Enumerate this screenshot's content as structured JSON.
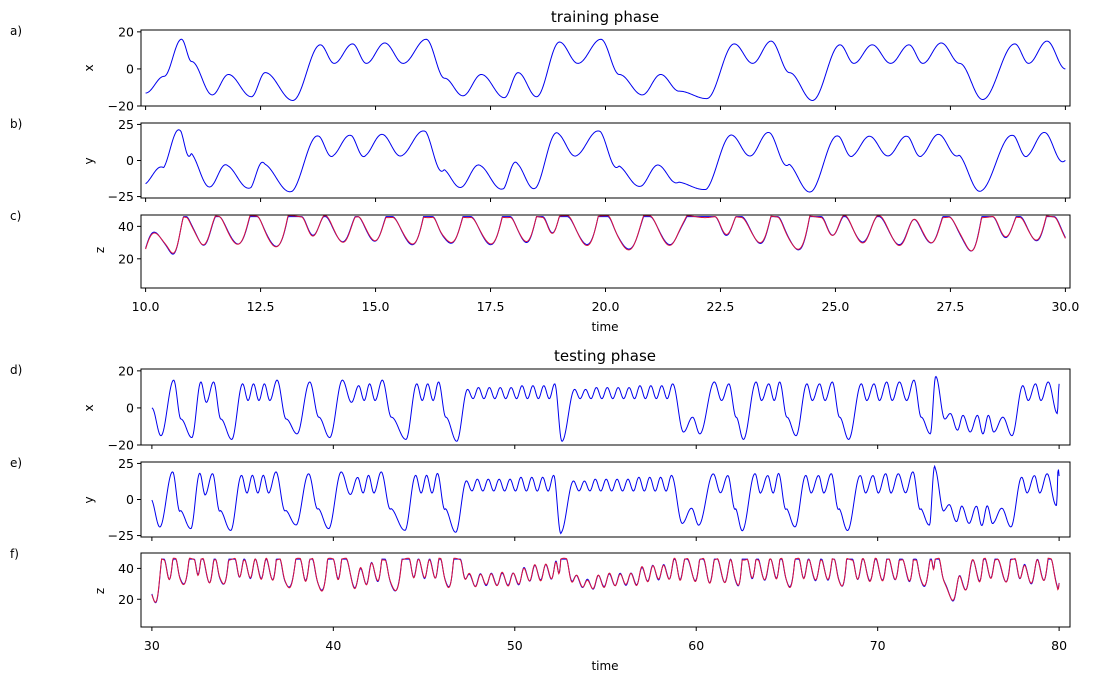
{
  "colors": {
    "actual": "#0000ee",
    "predicted": "#dc143c"
  },
  "groups": [
    {
      "title": "training phase",
      "xlabel": "time",
      "xlim": [
        9.9,
        30.1
      ],
      "xticks": [
        10.0,
        12.5,
        15.0,
        17.5,
        20.0,
        22.5,
        25.0,
        27.5,
        30.0
      ],
      "xtick_labels": [
        "10.0",
        "12.5",
        "15.0",
        "17.5",
        "20.0",
        "22.5",
        "25.0",
        "27.5",
        "30.0"
      ],
      "t_start": 10.0,
      "t_end": 30.0,
      "x_extrema": [
        [
          10.0,
          -13
        ],
        [
          10.4,
          -4
        ],
        [
          10.78,
          16
        ],
        [
          11.0,
          4
        ],
        [
          11.45,
          -14
        ],
        [
          11.8,
          -3
        ],
        [
          12.3,
          -15
        ],
        [
          12.6,
          -2
        ],
        [
          13.2,
          -17
        ],
        [
          13.8,
          13
        ],
        [
          14.1,
          3
        ],
        [
          14.5,
          13.5
        ],
        [
          14.8,
          3
        ],
        [
          15.2,
          14
        ],
        [
          15.6,
          3
        ],
        [
          16.1,
          16
        ],
        [
          16.5,
          -5
        ],
        [
          16.9,
          -14.5
        ],
        [
          17.3,
          -3
        ],
        [
          17.8,
          -15.5
        ],
        [
          18.1,
          -2
        ],
        [
          18.5,
          -15
        ],
        [
          19.0,
          14.5
        ],
        [
          19.4,
          3
        ],
        [
          19.9,
          16
        ],
        [
          20.3,
          -3
        ],
        [
          20.8,
          -14
        ],
        [
          21.2,
          -3
        ],
        [
          21.6,
          -12
        ],
        [
          22.2,
          -16
        ],
        [
          22.8,
          13.5
        ],
        [
          23.2,
          3
        ],
        [
          23.6,
          15
        ],
        [
          24.0,
          -2
        ],
        [
          24.5,
          -17
        ],
        [
          25.1,
          13
        ],
        [
          25.4,
          3
        ],
        [
          25.8,
          13
        ],
        [
          26.2,
          3
        ],
        [
          26.6,
          13
        ],
        [
          26.9,
          3
        ],
        [
          27.3,
          14
        ],
        [
          27.7,
          3
        ],
        [
          28.2,
          -16.5
        ],
        [
          28.9,
          13.5
        ],
        [
          29.2,
          3
        ],
        [
          29.6,
          15
        ],
        [
          30.0,
          0
        ]
      ],
      "panels": [
        {
          "letter": "a)",
          "ylabel": "x",
          "var": "x",
          "ylim": [
            -20,
            21
          ],
          "yticks": [
            -20,
            0,
            20
          ],
          "ytick_labels": [
            "−20",
            "0",
            "20"
          ],
          "show_xtick_labels": false
        },
        {
          "letter": "b)",
          "ylabel": "y",
          "var": "y",
          "ylim": [
            -26,
            26
          ],
          "yticks": [
            -25,
            0,
            25
          ],
          "ytick_labels": [
            "−25",
            "0",
            "25"
          ],
          "show_xtick_labels": false
        },
        {
          "letter": "c)",
          "ylabel": "z",
          "var": "z",
          "ylim": [
            2,
            47
          ],
          "yticks": [
            20,
            40
          ],
          "ytick_labels": [
            "20",
            "40"
          ],
          "show_xtick_labels": true
        }
      ]
    },
    {
      "title": "testing phase",
      "xlabel": "time",
      "xlim": [
        29.4,
        80.6
      ],
      "xticks": [
        30,
        40,
        50,
        60,
        70,
        80
      ],
      "xtick_labels": [
        "30",
        "40",
        "50",
        "60",
        "70",
        "80"
      ],
      "t_start": 30.0,
      "t_end": 80.0,
      "x_extrema": [
        [
          30.0,
          0
        ],
        [
          30.5,
          -15
        ],
        [
          31.2,
          15
        ],
        [
          31.6,
          -6
        ],
        [
          32.2,
          -16
        ],
        [
          32.7,
          14
        ],
        [
          33.0,
          3
        ],
        [
          33.4,
          14
        ],
        [
          33.8,
          -6
        ],
        [
          34.4,
          -17
        ],
        [
          35.0,
          13
        ],
        [
          35.3,
          4
        ],
        [
          35.6,
          13
        ],
        [
          35.9,
          4
        ],
        [
          36.2,
          13
        ],
        [
          36.5,
          4
        ],
        [
          36.9,
          15
        ],
        [
          37.4,
          -6
        ],
        [
          38.0,
          -14
        ],
        [
          38.7,
          14
        ],
        [
          39.2,
          -5
        ],
        [
          39.8,
          -16
        ],
        [
          40.5,
          15
        ],
        [
          41.0,
          3
        ],
        [
          41.4,
          12
        ],
        [
          41.7,
          4
        ],
        [
          42.0,
          13
        ],
        [
          42.3,
          4
        ],
        [
          42.7,
          15
        ],
        [
          43.2,
          -5
        ],
        [
          44.0,
          -17
        ],
        [
          44.6,
          13
        ],
        [
          44.9,
          4
        ],
        [
          45.2,
          13
        ],
        [
          45.5,
          4
        ],
        [
          45.8,
          14
        ],
        [
          46.2,
          -5
        ],
        [
          46.8,
          -18
        ],
        [
          47.4,
          10
        ],
        [
          47.7,
          5
        ],
        [
          48.0,
          11
        ],
        [
          48.3,
          5
        ],
        [
          48.6,
          11
        ],
        [
          48.9,
          5
        ],
        [
          49.2,
          11
        ],
        [
          49.5,
          5
        ],
        [
          49.8,
          11
        ],
        [
          50.1,
          5
        ],
        [
          50.4,
          12
        ],
        [
          50.7,
          5
        ],
        [
          51.0,
          12
        ],
        [
          51.3,
          5
        ],
        [
          51.6,
          12
        ],
        [
          51.9,
          5
        ],
        [
          52.2,
          13
        ],
        [
          52.6,
          -18
        ],
        [
          53.3,
          10
        ],
        [
          53.6,
          5
        ],
        [
          53.9,
          10
        ],
        [
          54.2,
          5
        ],
        [
          54.5,
          11
        ],
        [
          54.8,
          5
        ],
        [
          55.1,
          11
        ],
        [
          55.4,
          5
        ],
        [
          55.7,
          11
        ],
        [
          56.0,
          5
        ],
        [
          56.3,
          11
        ],
        [
          56.6,
          5
        ],
        [
          56.9,
          12
        ],
        [
          57.2,
          5
        ],
        [
          57.5,
          12
        ],
        [
          57.8,
          5
        ],
        [
          58.1,
          12
        ],
        [
          58.4,
          5
        ],
        [
          58.7,
          13
        ],
        [
          59.3,
          -13
        ],
        [
          59.8,
          -5
        ],
        [
          60.2,
          -14
        ],
        [
          61.0,
          14
        ],
        [
          61.4,
          4
        ],
        [
          61.8,
          13
        ],
        [
          62.2,
          -5
        ],
        [
          62.6,
          -17
        ],
        [
          63.3,
          14
        ],
        [
          63.6,
          4
        ],
        [
          64.0,
          13
        ],
        [
          64.3,
          4
        ],
        [
          64.6,
          14
        ],
        [
          65.0,
          -5
        ],
        [
          65.5,
          -15
        ],
        [
          66.1,
          13
        ],
        [
          66.4,
          4
        ],
        [
          66.8,
          13
        ],
        [
          67.1,
          4
        ],
        [
          67.5,
          14
        ],
        [
          67.9,
          -5
        ],
        [
          68.4,
          -17
        ],
        [
          69.1,
          13
        ],
        [
          69.4,
          4
        ],
        [
          69.8,
          13
        ],
        [
          70.1,
          4
        ],
        [
          70.5,
          14
        ],
        [
          70.8,
          4
        ],
        [
          71.2,
          14
        ],
        [
          71.6,
          4
        ],
        [
          72.0,
          15
        ],
        [
          72.4,
          -5
        ],
        [
          72.9,
          -14
        ],
        [
          73.2,
          17
        ],
        [
          73.7,
          -6
        ],
        [
          74.0,
          -3
        ],
        [
          74.4,
          -12
        ],
        [
          74.7,
          -4
        ],
        [
          75.1,
          -13
        ],
        [
          75.5,
          -4
        ],
        [
          75.8,
          -14
        ],
        [
          76.1,
          -4
        ],
        [
          76.4,
          -13
        ],
        [
          76.9,
          -5
        ],
        [
          77.4,
          -15
        ],
        [
          78.0,
          12
        ],
        [
          78.3,
          4
        ],
        [
          78.7,
          13
        ],
        [
          79.0,
          4
        ],
        [
          79.4,
          14
        ],
        [
          79.9,
          -3
        ],
        [
          80.0,
          13
        ]
      ],
      "panels": [
        {
          "letter": "d)",
          "ylabel": "x",
          "var": "x",
          "ylim": [
            -20,
            21
          ],
          "yticks": [
            -20,
            0,
            20
          ],
          "ytick_labels": [
            "−20",
            "0",
            "20"
          ],
          "show_xtick_labels": false
        },
        {
          "letter": "e)",
          "ylabel": "y",
          "var": "y",
          "ylim": [
            -26,
            26
          ],
          "yticks": [
            -25,
            0,
            25
          ],
          "ytick_labels": [
            "−25",
            "0",
            "25"
          ],
          "show_xtick_labels": false
        },
        {
          "letter": "f)",
          "ylabel": "z",
          "var": "z",
          "ylim": [
            2,
            50
          ],
          "yticks": [
            20,
            40
          ],
          "ytick_labels": [
            "20",
            "40"
          ],
          "show_xtick_labels": true
        }
      ]
    }
  ],
  "chart_data": [
    {
      "type": "line",
      "title": "training phase",
      "xlabel": "time",
      "xlim": [
        10.0,
        30.0
      ],
      "subplots": [
        {
          "panel": "a)",
          "ylabel": "x",
          "ylim": [
            -20,
            21
          ],
          "series": [
            {
              "color": "#0000ee"
            }
          ]
        },
        {
          "panel": "b)",
          "ylabel": "y",
          "ylim": [
            -26,
            26
          ],
          "series": [
            {
              "color": "#0000ee"
            }
          ]
        },
        {
          "panel": "c)",
          "ylabel": "z",
          "ylim": [
            2,
            47
          ],
          "series": [
            {
              "color": "#0000ee"
            },
            {
              "color": "#dc143c"
            }
          ]
        }
      ]
    },
    {
      "type": "line",
      "title": "testing phase",
      "xlabel": "time",
      "xlim": [
        30,
        80
      ],
      "subplots": [
        {
          "panel": "d)",
          "ylabel": "x",
          "ylim": [
            -20,
            21
          ],
          "series": [
            {
              "color": "#0000ee"
            }
          ]
        },
        {
          "panel": "e)",
          "ylabel": "y",
          "ylim": [
            -26,
            26
          ],
          "series": [
            {
              "color": "#0000ee"
            }
          ]
        },
        {
          "panel": "f)",
          "ylabel": "z",
          "ylim": [
            2,
            50
          ],
          "series": [
            {
              "color": "#0000ee"
            },
            {
              "color": "#dc143c"
            }
          ]
        }
      ]
    }
  ]
}
